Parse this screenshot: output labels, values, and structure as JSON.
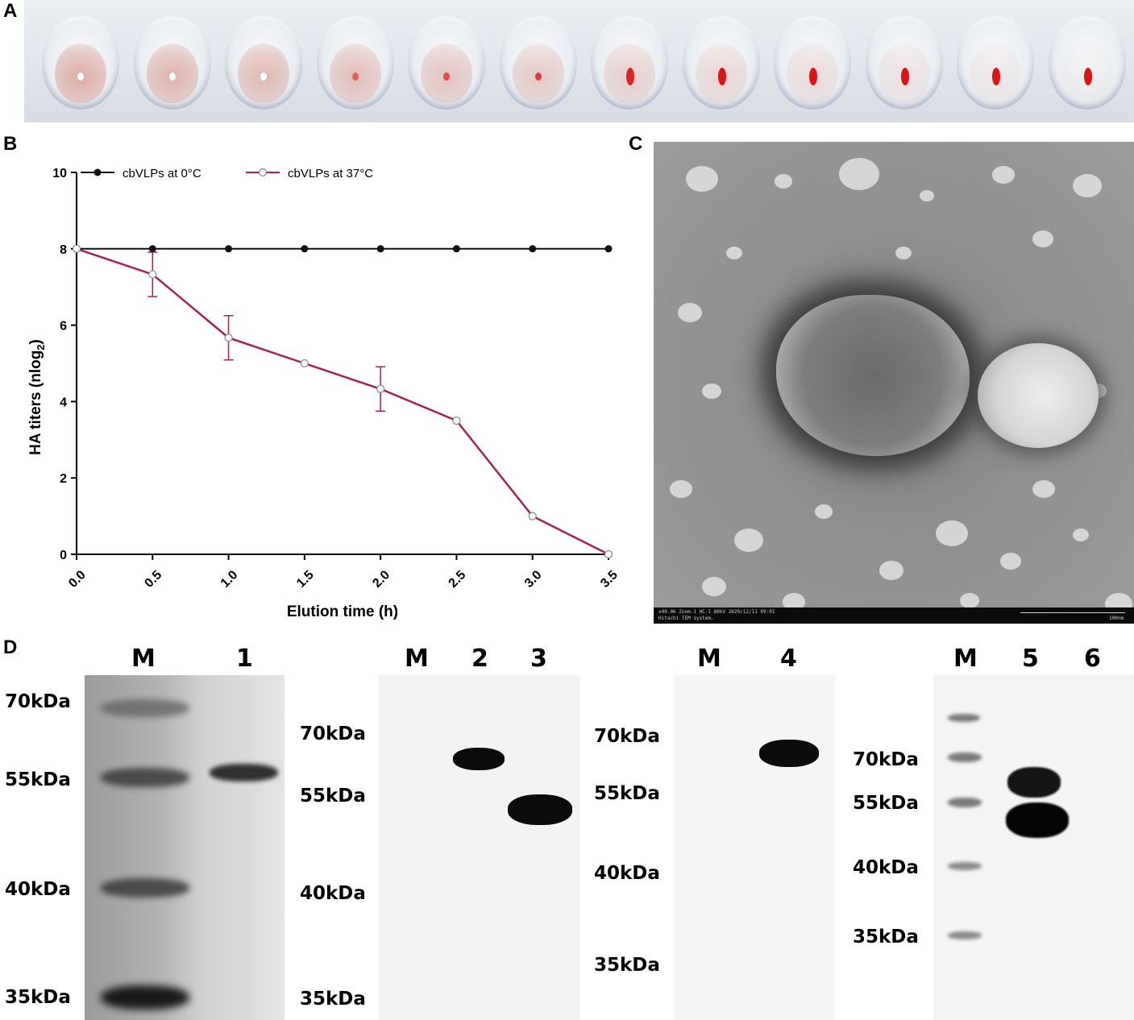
{
  "panel_labels": {
    "a": "A",
    "b": "B",
    "c": "C",
    "d": "D"
  },
  "panel_a": {
    "well_count": 12
  },
  "chart_data": {
    "type": "line",
    "xlabel": "Elution time (h)",
    "ylabel": "HA titers (nlog",
    "ylabel_sub": "2",
    "ylabel_close": ")",
    "xlim": [
      0,
      3.5
    ],
    "ylim": [
      0,
      10
    ],
    "x_ticks": [
      "0.0",
      "0.5",
      "1.0",
      "1.5",
      "2.0",
      "2.5",
      "3.0",
      "3.5"
    ],
    "y_ticks": [
      "0",
      "2",
      "4",
      "6",
      "8",
      "10"
    ],
    "x": [
      0,
      0.5,
      1.0,
      1.5,
      2.0,
      2.5,
      3.0,
      3.5
    ],
    "series": [
      {
        "name": "cbVLPs at 0°C",
        "values": [
          8,
          8,
          8,
          8,
          8,
          8,
          8,
          8
        ],
        "color": "#111111",
        "marker": "filled-circle"
      },
      {
        "name": "cbVLPs at 37°C",
        "values": [
          8,
          7.33,
          5.67,
          5.0,
          4.33,
          3.5,
          1.0,
          0
        ],
        "errors": [
          0,
          0.58,
          0.58,
          0,
          0.58,
          0,
          0,
          0
        ],
        "color": "#a3205a",
        "marker": "open-circle"
      }
    ],
    "legend_position": "top"
  },
  "panel_c": {
    "info_text": "x40.0k Zoom-1 HC-1 80kV 2020/12/11 09:01",
    "system_text": "Hitachi TEM system.",
    "scale_text": "100nm"
  },
  "panel_d": {
    "blot1": {
      "lanes": [
        "M",
        "1"
      ],
      "markers": [
        "70kDa",
        "55kDa",
        "40kDa",
        "35kDa"
      ]
    },
    "blot2": {
      "lanes": [
        "M",
        "2",
        "3"
      ],
      "markers": [
        "70kDa",
        "55kDa",
        "40kDa",
        "35kDa"
      ]
    },
    "blot3": {
      "lanes": [
        "M",
        "4"
      ],
      "markers": [
        "70kDa",
        "55kDa",
        "40kDa",
        "35kDa"
      ]
    },
    "blot4": {
      "lanes": [
        "M",
        "5",
        "6"
      ],
      "markers": [
        "70kDa",
        "55kDa",
        "40kDa",
        "35kDa"
      ]
    }
  }
}
